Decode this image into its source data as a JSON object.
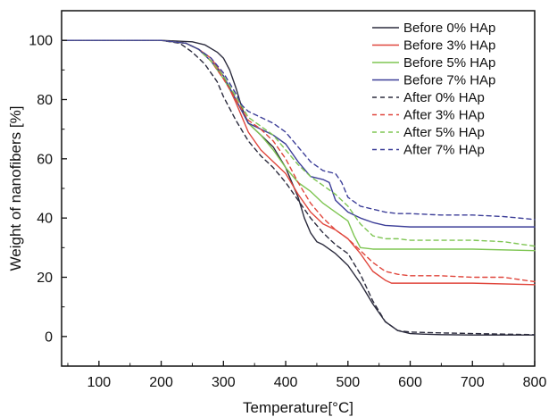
{
  "chart_data": {
    "type": "line",
    "title": "",
    "xlabel": "Temperature[°C]",
    "ylabel": "Weight of nanofibers [%]",
    "xlim": [
      40,
      800
    ],
    "ylim": [
      -10,
      110
    ],
    "x_ticks": [
      100,
      200,
      300,
      400,
      500,
      600,
      700,
      800
    ],
    "x_tick_labels": [
      "100",
      "200",
      "300",
      "400",
      "500",
      "600",
      "700",
      "800"
    ],
    "y_ticks": [
      0,
      20,
      40,
      60,
      80,
      100
    ],
    "y_tick_labels": [
      "0",
      "20",
      "40",
      "60",
      "80",
      "100"
    ],
    "grid": false,
    "legend_position": "top-right",
    "colors": {
      "black": "#2b2b3d",
      "red": "#e0463c",
      "green": "#7ec552",
      "blue": "#3c3e98",
      "axis": "#111111"
    },
    "series": [
      {
        "name": "Before 0% HAp",
        "color": "#2b2b3d",
        "dashed": false,
        "x": [
          40,
          200,
          250,
          270,
          290,
          300,
          310,
          320,
          330,
          340,
          350,
          360,
          380,
          400,
          420,
          430,
          440,
          450,
          460,
          480,
          500,
          520,
          540,
          560,
          580,
          600,
          620,
          650,
          700,
          750,
          800
        ],
        "y": [
          100,
          100,
          99.5,
          98.5,
          96,
          94,
          90,
          84,
          77,
          72,
          70,
          68,
          64,
          57,
          47,
          40,
          35,
          32,
          31,
          28,
          24,
          18,
          11,
          5,
          2,
          1,
          0.8,
          0.6,
          0.5,
          0.5,
          0.5
        ]
      },
      {
        "name": "Before 3% HAp",
        "color": "#e0463c",
        "dashed": false,
        "x": [
          40,
          200,
          240,
          260,
          280,
          290,
          300,
          320,
          340,
          360,
          380,
          400,
          420,
          440,
          460,
          480,
          500,
          520,
          540,
          560,
          570,
          580,
          600,
          650,
          700,
          800
        ],
        "y": [
          100,
          100,
          99,
          97,
          94,
          91,
          88,
          79,
          69,
          63,
          59,
          55,
          48,
          42,
          38,
          36,
          33,
          28,
          22,
          19,
          18,
          18,
          18,
          18,
          18,
          17.5
        ]
      },
      {
        "name": "Before 5% HAp",
        "color": "#7ec552",
        "dashed": false,
        "x": [
          40,
          200,
          240,
          260,
          280,
          300,
          320,
          340,
          360,
          380,
          400,
          420,
          440,
          460,
          480,
          500,
          510,
          520,
          540,
          560,
          600,
          650,
          700,
          800
        ],
        "y": [
          100,
          100,
          99,
          97,
          93,
          87,
          80,
          72,
          68,
          63,
          57,
          52,
          49,
          45,
          42,
          39,
          34,
          30,
          29.5,
          29.5,
          29.5,
          29.5,
          29.5,
          29
        ]
      },
      {
        "name": "Before 7% HAp",
        "color": "#3c3e98",
        "dashed": false,
        "x": [
          40,
          200,
          240,
          260,
          280,
          300,
          320,
          340,
          360,
          380,
          400,
          420,
          440,
          460,
          470,
          480,
          500,
          520,
          540,
          560,
          600,
          650,
          700,
          750,
          800
        ],
        "y": [
          100,
          100,
          99,
          97,
          93,
          88,
          80,
          72,
          70,
          68,
          65,
          59,
          54,
          53,
          52,
          46,
          42,
          40,
          38.5,
          37.5,
          37,
          37,
          37,
          37,
          37
        ]
      },
      {
        "name": "After 0% HAp",
        "color": "#2b2b3d",
        "dashed": true,
        "x": [
          40,
          200,
          230,
          250,
          270,
          290,
          300,
          320,
          340,
          360,
          380,
          400,
          420,
          440,
          460,
          480,
          500,
          520,
          540,
          560,
          580,
          600,
          650,
          700,
          750,
          800
        ],
        "y": [
          100,
          100,
          99,
          96,
          92,
          86,
          81,
          73,
          66,
          61,
          57,
          52,
          46,
          40,
          35,
          31,
          28,
          21,
          12,
          5,
          2,
          1.5,
          1.2,
          1.0,
          0.8,
          0.6
        ]
      },
      {
        "name": "After 3% HAp",
        "color": "#e0463c",
        "dashed": true,
        "x": [
          40,
          200,
          240,
          260,
          280,
          300,
          320,
          340,
          360,
          380,
          400,
          420,
          440,
          460,
          480,
          500,
          520,
          540,
          560,
          580,
          600,
          650,
          700,
          750,
          800
        ],
        "y": [
          100,
          100,
          99,
          97,
          93,
          87,
          80,
          73,
          70,
          66,
          60,
          52,
          45,
          40,
          36,
          33,
          29,
          25,
          22,
          21,
          20.5,
          20.5,
          20,
          20,
          18.5
        ]
      },
      {
        "name": "After 5% HAp",
        "color": "#7ec552",
        "dashed": true,
        "x": [
          40,
          200,
          240,
          260,
          280,
          300,
          320,
          340,
          360,
          380,
          400,
          420,
          440,
          460,
          480,
          500,
          520,
          540,
          560,
          580,
          600,
          650,
          700,
          750,
          800
        ],
        "y": [
          100,
          100,
          99,
          97,
          93,
          88,
          81,
          74,
          71,
          68,
          63,
          58,
          54,
          51,
          48,
          44,
          38,
          34,
          33,
          33,
          32.5,
          32.5,
          32.5,
          32,
          30.5
        ]
      },
      {
        "name": "After 7% HAp",
        "color": "#3c3e98",
        "dashed": true,
        "x": [
          40,
          200,
          240,
          260,
          280,
          300,
          320,
          330,
          340,
          360,
          380,
          400,
          420,
          440,
          460,
          480,
          490,
          500,
          520,
          540,
          560,
          580,
          600,
          650,
          700,
          750,
          800
        ],
        "y": [
          100,
          100,
          99,
          97,
          94,
          89,
          82,
          78,
          76,
          74,
          72,
          69,
          64,
          59,
          56,
          55,
          52,
          47,
          44,
          43,
          42,
          41.5,
          41.5,
          41,
          41,
          40.5,
          39.5
        ]
      }
    ]
  }
}
